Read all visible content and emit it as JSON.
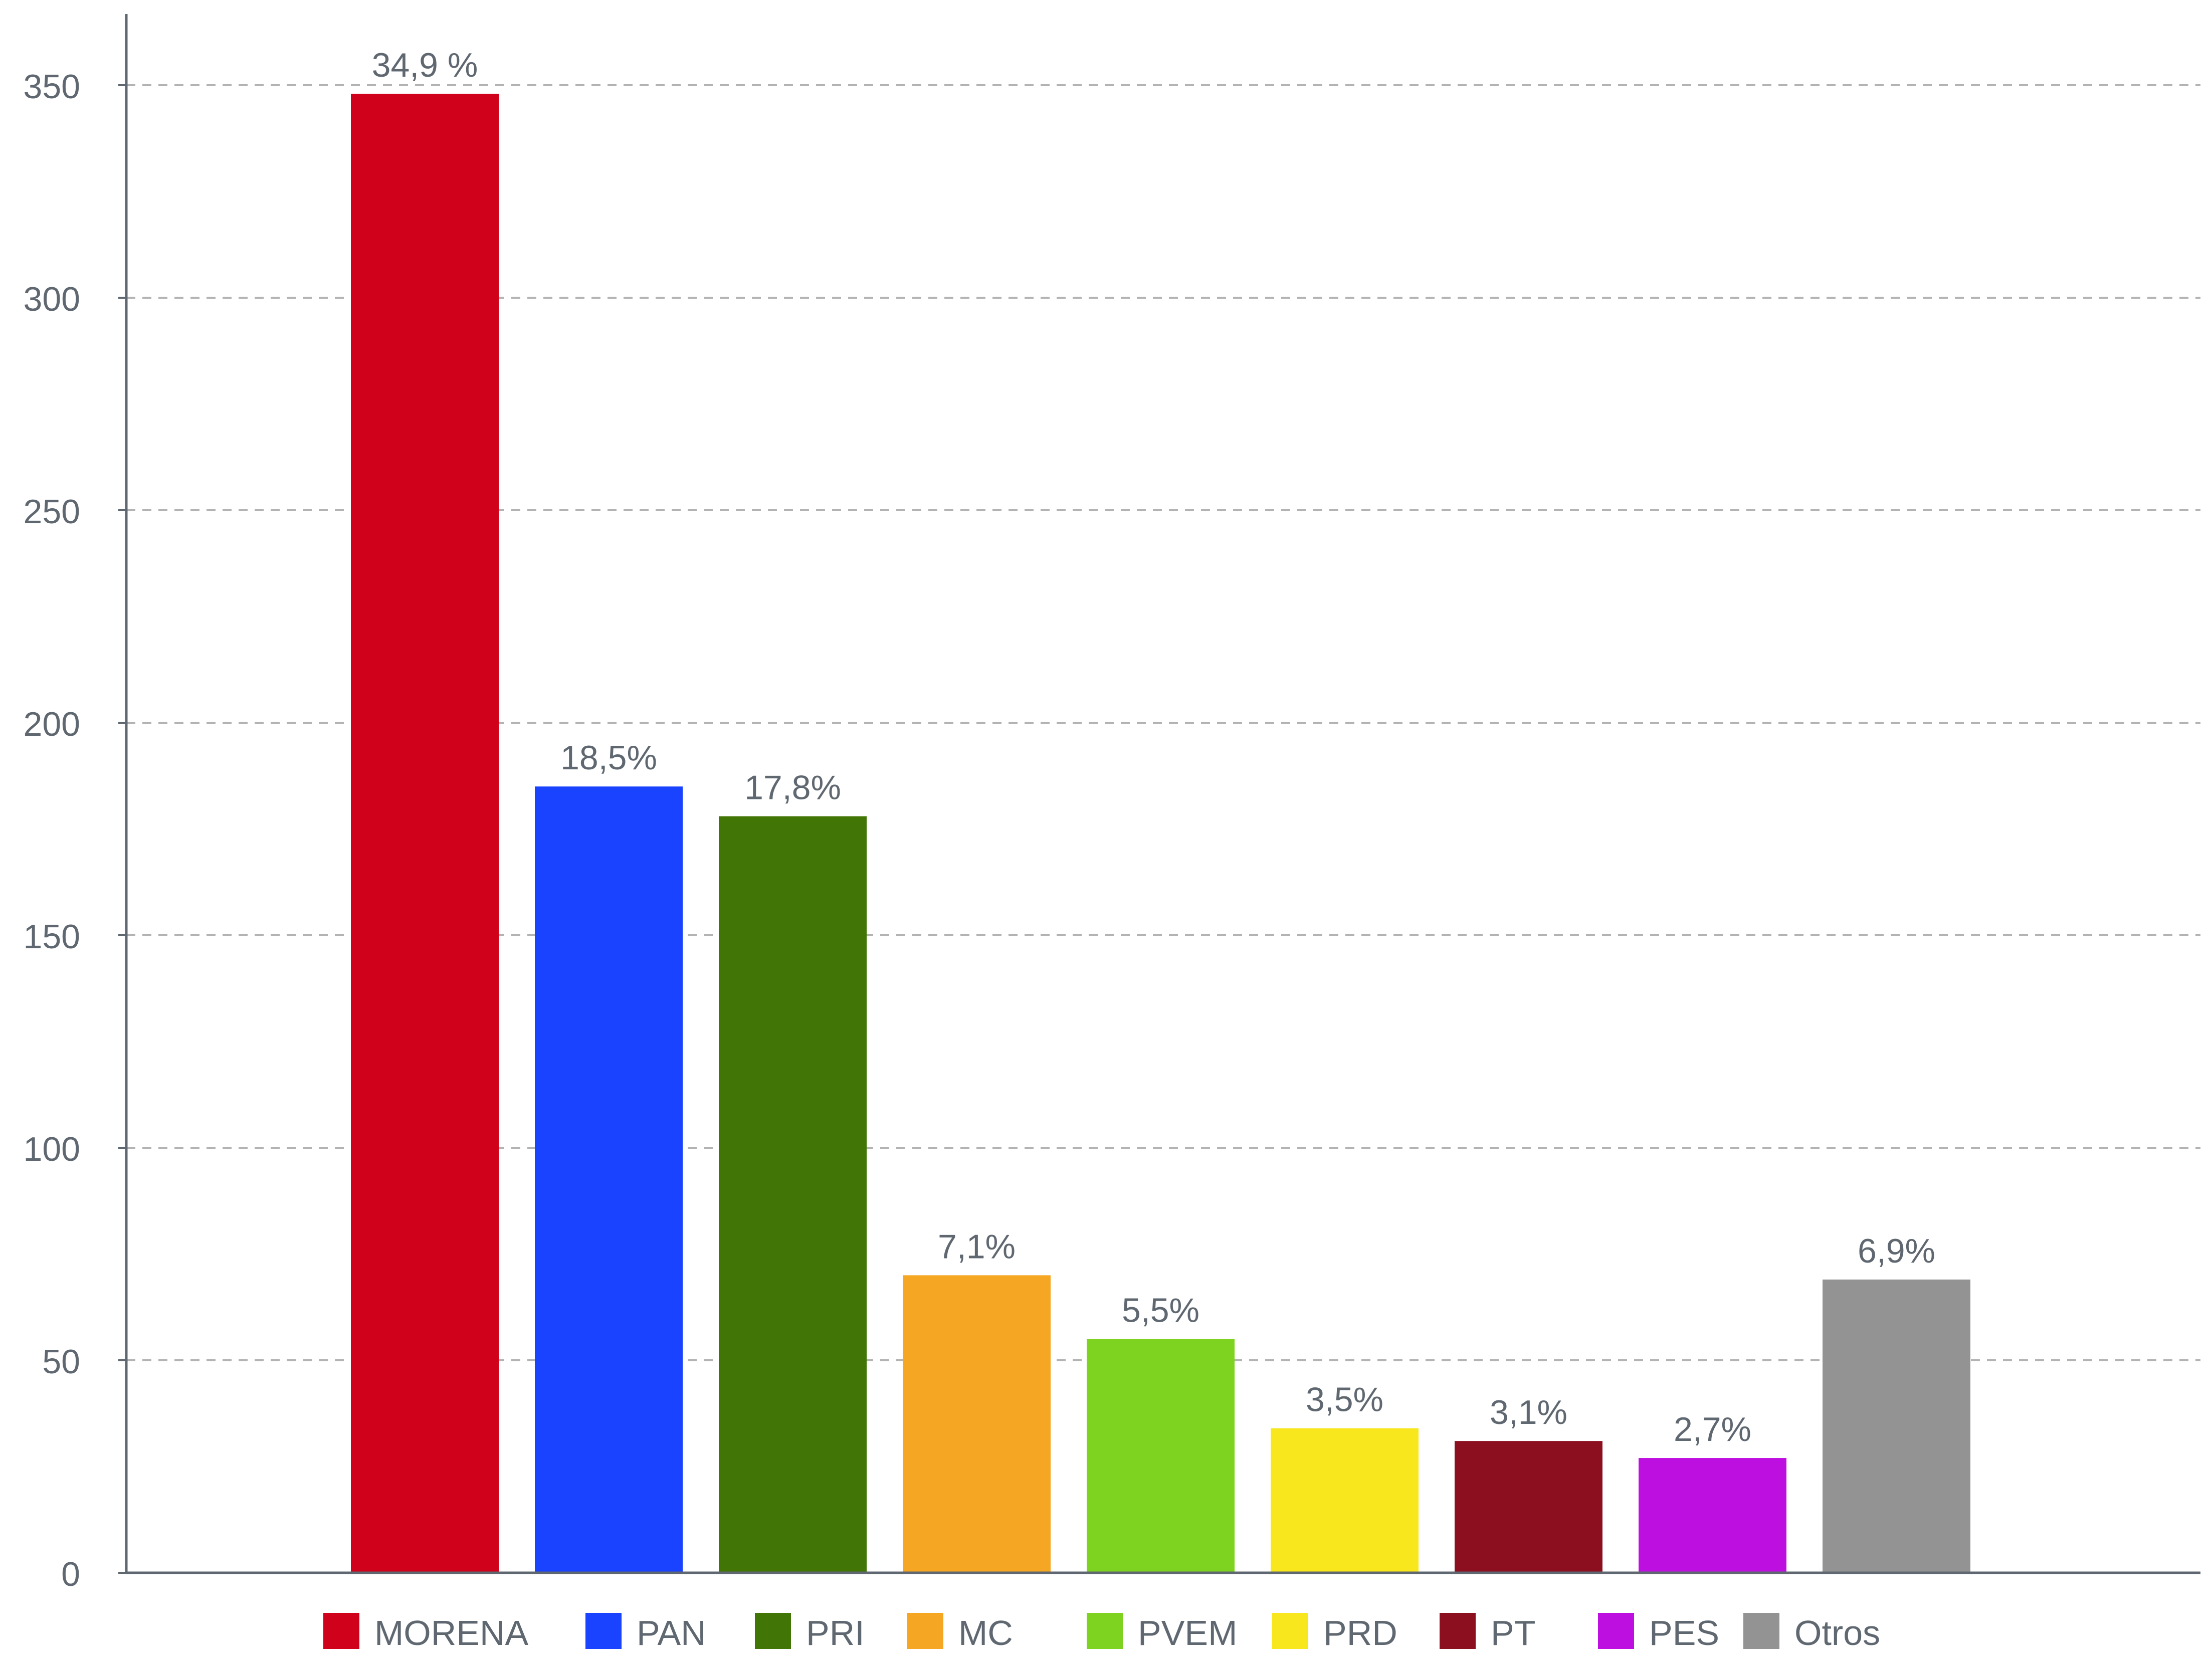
{
  "chart_data": {
    "type": "bar",
    "title": "",
    "xlabel": "",
    "ylabel": "",
    "ylim": [
      0,
      360
    ],
    "yticks": [
      0,
      50,
      100,
      150,
      200,
      250,
      300,
      350
    ],
    "grid": true,
    "legend_position": "bottom",
    "categories": [
      "MORENA",
      "PAN",
      "PRI",
      "MC",
      "PVEM",
      "PRD",
      "PT",
      "PES",
      "Otros"
    ],
    "values": [
      348,
      185,
      178,
      70,
      55,
      34,
      31,
      27,
      69
    ],
    "labels": [
      "34,9 %",
      "18,5%",
      "17,8%",
      "7,1%",
      "5,5%",
      "3,5%",
      "3,1%",
      "2,7%",
      "6,9%"
    ],
    "colors": [
      "#d0021b",
      "#1a43ff",
      "#417505",
      "#f5a623",
      "#7ed321",
      "#f8e71c",
      "#8b0f1f",
      "#bd10e0",
      "#939393"
    ]
  }
}
